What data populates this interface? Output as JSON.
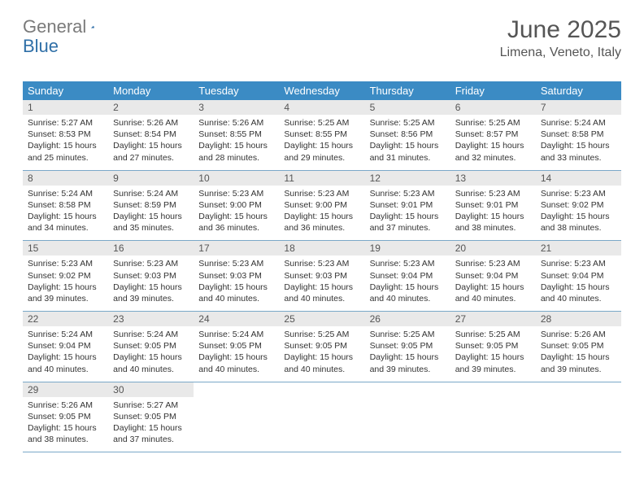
{
  "logo": {
    "text_gray": "General",
    "text_blue": "Blue"
  },
  "title": "June 2025",
  "location": "Limena, Veneto, Italy",
  "colors": {
    "header_bg": "#3b8bc4",
    "header_text": "#ffffff",
    "daynum_bg": "#e9e9e9",
    "row_border": "#7aa8c8",
    "logo_gray": "#7a7a7a",
    "logo_blue": "#2f6fa7",
    "body_text": "#333333"
  },
  "weekdays": [
    "Sunday",
    "Monday",
    "Tuesday",
    "Wednesday",
    "Thursday",
    "Friday",
    "Saturday"
  ],
  "weeks": [
    [
      {
        "n": "1",
        "sr": "5:27 AM",
        "ss": "8:53 PM",
        "d1": "15 hours",
        "d2": "25 minutes"
      },
      {
        "n": "2",
        "sr": "5:26 AM",
        "ss": "8:54 PM",
        "d1": "15 hours",
        "d2": "27 minutes"
      },
      {
        "n": "3",
        "sr": "5:26 AM",
        "ss": "8:55 PM",
        "d1": "15 hours",
        "d2": "28 minutes"
      },
      {
        "n": "4",
        "sr": "5:25 AM",
        "ss": "8:55 PM",
        "d1": "15 hours",
        "d2": "29 minutes"
      },
      {
        "n": "5",
        "sr": "5:25 AM",
        "ss": "8:56 PM",
        "d1": "15 hours",
        "d2": "31 minutes"
      },
      {
        "n": "6",
        "sr": "5:25 AM",
        "ss": "8:57 PM",
        "d1": "15 hours",
        "d2": "32 minutes"
      },
      {
        "n": "7",
        "sr": "5:24 AM",
        "ss": "8:58 PM",
        "d1": "15 hours",
        "d2": "33 minutes"
      }
    ],
    [
      {
        "n": "8",
        "sr": "5:24 AM",
        "ss": "8:58 PM",
        "d1": "15 hours",
        "d2": "34 minutes"
      },
      {
        "n": "9",
        "sr": "5:24 AM",
        "ss": "8:59 PM",
        "d1": "15 hours",
        "d2": "35 minutes"
      },
      {
        "n": "10",
        "sr": "5:23 AM",
        "ss": "9:00 PM",
        "d1": "15 hours",
        "d2": "36 minutes"
      },
      {
        "n": "11",
        "sr": "5:23 AM",
        "ss": "9:00 PM",
        "d1": "15 hours",
        "d2": "36 minutes"
      },
      {
        "n": "12",
        "sr": "5:23 AM",
        "ss": "9:01 PM",
        "d1": "15 hours",
        "d2": "37 minutes"
      },
      {
        "n": "13",
        "sr": "5:23 AM",
        "ss": "9:01 PM",
        "d1": "15 hours",
        "d2": "38 minutes"
      },
      {
        "n": "14",
        "sr": "5:23 AM",
        "ss": "9:02 PM",
        "d1": "15 hours",
        "d2": "38 minutes"
      }
    ],
    [
      {
        "n": "15",
        "sr": "5:23 AM",
        "ss": "9:02 PM",
        "d1": "15 hours",
        "d2": "39 minutes"
      },
      {
        "n": "16",
        "sr": "5:23 AM",
        "ss": "9:03 PM",
        "d1": "15 hours",
        "d2": "39 minutes"
      },
      {
        "n": "17",
        "sr": "5:23 AM",
        "ss": "9:03 PM",
        "d1": "15 hours",
        "d2": "40 minutes"
      },
      {
        "n": "18",
        "sr": "5:23 AM",
        "ss": "9:03 PM",
        "d1": "15 hours",
        "d2": "40 minutes"
      },
      {
        "n": "19",
        "sr": "5:23 AM",
        "ss": "9:04 PM",
        "d1": "15 hours",
        "d2": "40 minutes"
      },
      {
        "n": "20",
        "sr": "5:23 AM",
        "ss": "9:04 PM",
        "d1": "15 hours",
        "d2": "40 minutes"
      },
      {
        "n": "21",
        "sr": "5:23 AM",
        "ss": "9:04 PM",
        "d1": "15 hours",
        "d2": "40 minutes"
      }
    ],
    [
      {
        "n": "22",
        "sr": "5:24 AM",
        "ss": "9:04 PM",
        "d1": "15 hours",
        "d2": "40 minutes"
      },
      {
        "n": "23",
        "sr": "5:24 AM",
        "ss": "9:05 PM",
        "d1": "15 hours",
        "d2": "40 minutes"
      },
      {
        "n": "24",
        "sr": "5:24 AM",
        "ss": "9:05 PM",
        "d1": "15 hours",
        "d2": "40 minutes"
      },
      {
        "n": "25",
        "sr": "5:25 AM",
        "ss": "9:05 PM",
        "d1": "15 hours",
        "d2": "40 minutes"
      },
      {
        "n": "26",
        "sr": "5:25 AM",
        "ss": "9:05 PM",
        "d1": "15 hours",
        "d2": "39 minutes"
      },
      {
        "n": "27",
        "sr": "5:25 AM",
        "ss": "9:05 PM",
        "d1": "15 hours",
        "d2": "39 minutes"
      },
      {
        "n": "28",
        "sr": "5:26 AM",
        "ss": "9:05 PM",
        "d1": "15 hours",
        "d2": "39 minutes"
      }
    ],
    [
      {
        "n": "29",
        "sr": "5:26 AM",
        "ss": "9:05 PM",
        "d1": "15 hours",
        "d2": "38 minutes"
      },
      {
        "n": "30",
        "sr": "5:27 AM",
        "ss": "9:05 PM",
        "d1": "15 hours",
        "d2": "37 minutes"
      },
      null,
      null,
      null,
      null,
      null
    ]
  ]
}
